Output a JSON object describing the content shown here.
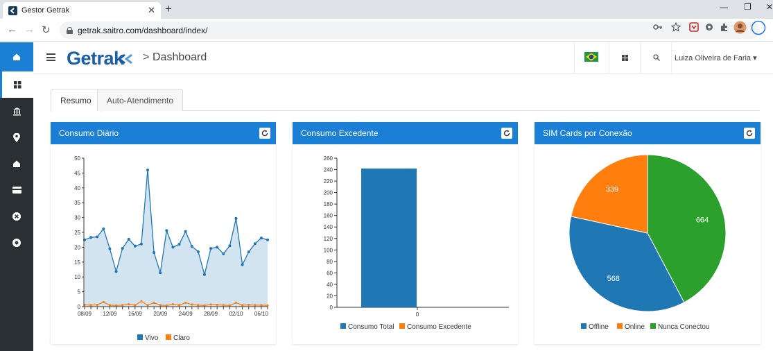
{
  "browser": {
    "tab_title": "Gestor Getrak",
    "url": "getrak.saitro.com/dashboard/index/"
  },
  "header": {
    "logo": "Getrak",
    "breadcrumb_sep": ">",
    "page_title": "Dashboard",
    "user_name": "Luiza Oliveira de Faria"
  },
  "tabs": [
    "Resumo",
    "Auto-Atendimento"
  ],
  "panels": {
    "daily": {
      "title": "Consumo Diário"
    },
    "excess": {
      "title": "Consumo Excedente"
    },
    "sims": {
      "title": "SIM Cards por Conexão"
    }
  },
  "colors": {
    "blue": "#1f77b4",
    "orange": "#ff7f0e",
    "green": "#2ca02c",
    "header": "#1b7fd6"
  },
  "chart_data": [
    {
      "type": "area",
      "title": "Consumo Diário",
      "ylim": [
        0,
        50
      ],
      "yticks": [
        0,
        5,
        10,
        15,
        20,
        25,
        30,
        35,
        40,
        45,
        50
      ],
      "xticks": [
        "08/09",
        "12/09",
        "16/09",
        "20/09",
        "24/09",
        "28/09",
        "02/10",
        "06/10"
      ],
      "series": [
        {
          "name": "Vivo",
          "values": [
            22.5,
            23.3,
            23.5,
            26.2,
            19.5,
            11.8,
            19.6,
            22.7,
            20.4,
            21.1,
            46.0,
            18.2,
            11.4,
            25.6,
            20.0,
            21.0,
            25.3,
            20.3,
            18.5,
            10.8,
            19.6,
            20.0,
            17.8,
            20.5,
            29.7,
            14.1,
            18.4,
            21.2,
            23.1,
            22.5
          ]
        },
        {
          "name": "Claro",
          "values": [
            0.6,
            0.5,
            0.6,
            1.5,
            0.5,
            0.4,
            0.5,
            0.8,
            0.5,
            1.8,
            0.5,
            1.3,
            0.5,
            0.4,
            0.8,
            0.5,
            1.3,
            0.7,
            0.5,
            0.4,
            0.7,
            0.6,
            0.5,
            0.4,
            1.3,
            0.5,
            0.6,
            0.5,
            0.5,
            0.4
          ]
        }
      ]
    },
    {
      "type": "bar",
      "title": "Consumo Excedente",
      "categories": [
        "0"
      ],
      "ylim": [
        0,
        260
      ],
      "yticks": [
        0,
        20,
        40,
        60,
        80,
        100,
        120,
        140,
        160,
        180,
        200,
        220,
        240,
        260
      ],
      "series": [
        {
          "name": "Consumo Total",
          "values": [
            242
          ]
        },
        {
          "name": "Consumo Excedente",
          "values": [
            0
          ]
        }
      ]
    },
    {
      "type": "pie",
      "title": "SIM Cards por Conexão",
      "series": [
        {
          "name": "Offline",
          "value": 568
        },
        {
          "name": "Online",
          "value": 339
        },
        {
          "name": "Nunca Conectou",
          "value": 664
        }
      ]
    }
  ]
}
